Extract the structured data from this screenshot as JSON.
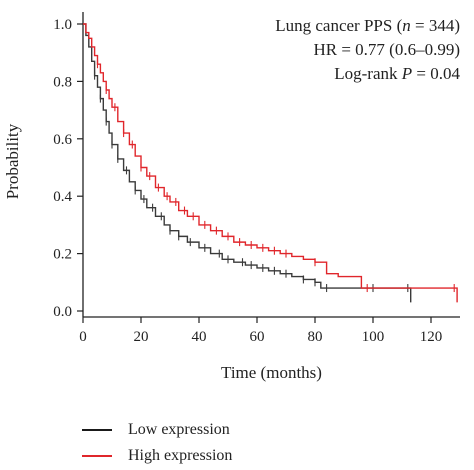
{
  "chart_data": {
    "type": "line",
    "xlabel": "Time (months)",
    "ylabel": "Probability",
    "xlim": [
      0,
      130
    ],
    "ylim": [
      0,
      1.0
    ],
    "xticks": [
      "0",
      "20",
      "40",
      "60",
      "80",
      "100",
      "120"
    ],
    "yticks": [
      "0.0",
      "0.2",
      "0.4",
      "0.6",
      "0.8",
      "1.0"
    ],
    "annotation": {
      "line1_prefix": "Lung cancer PPS (",
      "line1_n": "n",
      "line1_suffix": " = 344)",
      "line2": "HR = 0.77 (0.6–0.99)",
      "line3_prefix": "Log-rank ",
      "line3_p": "P",
      "line3_suffix": " = 0.04"
    },
    "series": [
      {
        "name": "Low expression",
        "color": "#3a3a3a",
        "x": [
          0,
          1,
          2,
          3,
          4,
          5,
          6,
          7,
          8,
          9,
          10,
          12,
          14,
          16,
          18,
          20,
          22,
          25,
          28,
          30,
          33,
          36,
          40,
          44,
          48,
          52,
          56,
          60,
          64,
          68,
          72,
          76,
          80,
          82,
          84,
          88,
          92,
          96,
          100,
          104,
          108,
          113
        ],
        "y": [
          1.0,
          0.96,
          0.92,
          0.87,
          0.82,
          0.78,
          0.74,
          0.7,
          0.66,
          0.62,
          0.58,
          0.53,
          0.49,
          0.45,
          0.42,
          0.39,
          0.36,
          0.33,
          0.3,
          0.28,
          0.26,
          0.24,
          0.22,
          0.2,
          0.18,
          0.17,
          0.16,
          0.15,
          0.14,
          0.13,
          0.12,
          0.11,
          0.1,
          0.08,
          0.08,
          0.08,
          0.08,
          0.08,
          0.08,
          0.08,
          0.08,
          0.03
        ],
        "censor_x": [
          4,
          6,
          8,
          10,
          12,
          15,
          18,
          21,
          24,
          27,
          30,
          33,
          37,
          42,
          47,
          50,
          55,
          58,
          62,
          66,
          70,
          76,
          80,
          84,
          100,
          112
        ]
      },
      {
        "name": "High expression",
        "color": "#e0262b",
        "x": [
          0,
          1,
          2,
          3,
          4,
          5,
          6,
          7,
          8,
          9,
          10,
          12,
          14,
          16,
          18,
          20,
          22,
          25,
          28,
          30,
          33,
          36,
          40,
          44,
          48,
          52,
          56,
          60,
          64,
          68,
          72,
          76,
          80,
          84,
          88,
          92,
          96,
          100,
          105,
          110,
          115,
          120,
          125,
          129
        ],
        "y": [
          1.0,
          0.97,
          0.95,
          0.92,
          0.89,
          0.86,
          0.83,
          0.8,
          0.77,
          0.74,
          0.71,
          0.66,
          0.62,
          0.58,
          0.54,
          0.5,
          0.47,
          0.43,
          0.4,
          0.38,
          0.35,
          0.33,
          0.3,
          0.28,
          0.26,
          0.24,
          0.23,
          0.22,
          0.21,
          0.2,
          0.19,
          0.18,
          0.17,
          0.13,
          0.12,
          0.12,
          0.08,
          0.08,
          0.08,
          0.08,
          0.08,
          0.08,
          0.08,
          0.03
        ],
        "censor_x": [
          5,
          8,
          11,
          14,
          17,
          20,
          23,
          26,
          29,
          32,
          35,
          38,
          42,
          46,
          50,
          54,
          58,
          62,
          66,
          70,
          80,
          98,
          128
        ]
      }
    ]
  }
}
